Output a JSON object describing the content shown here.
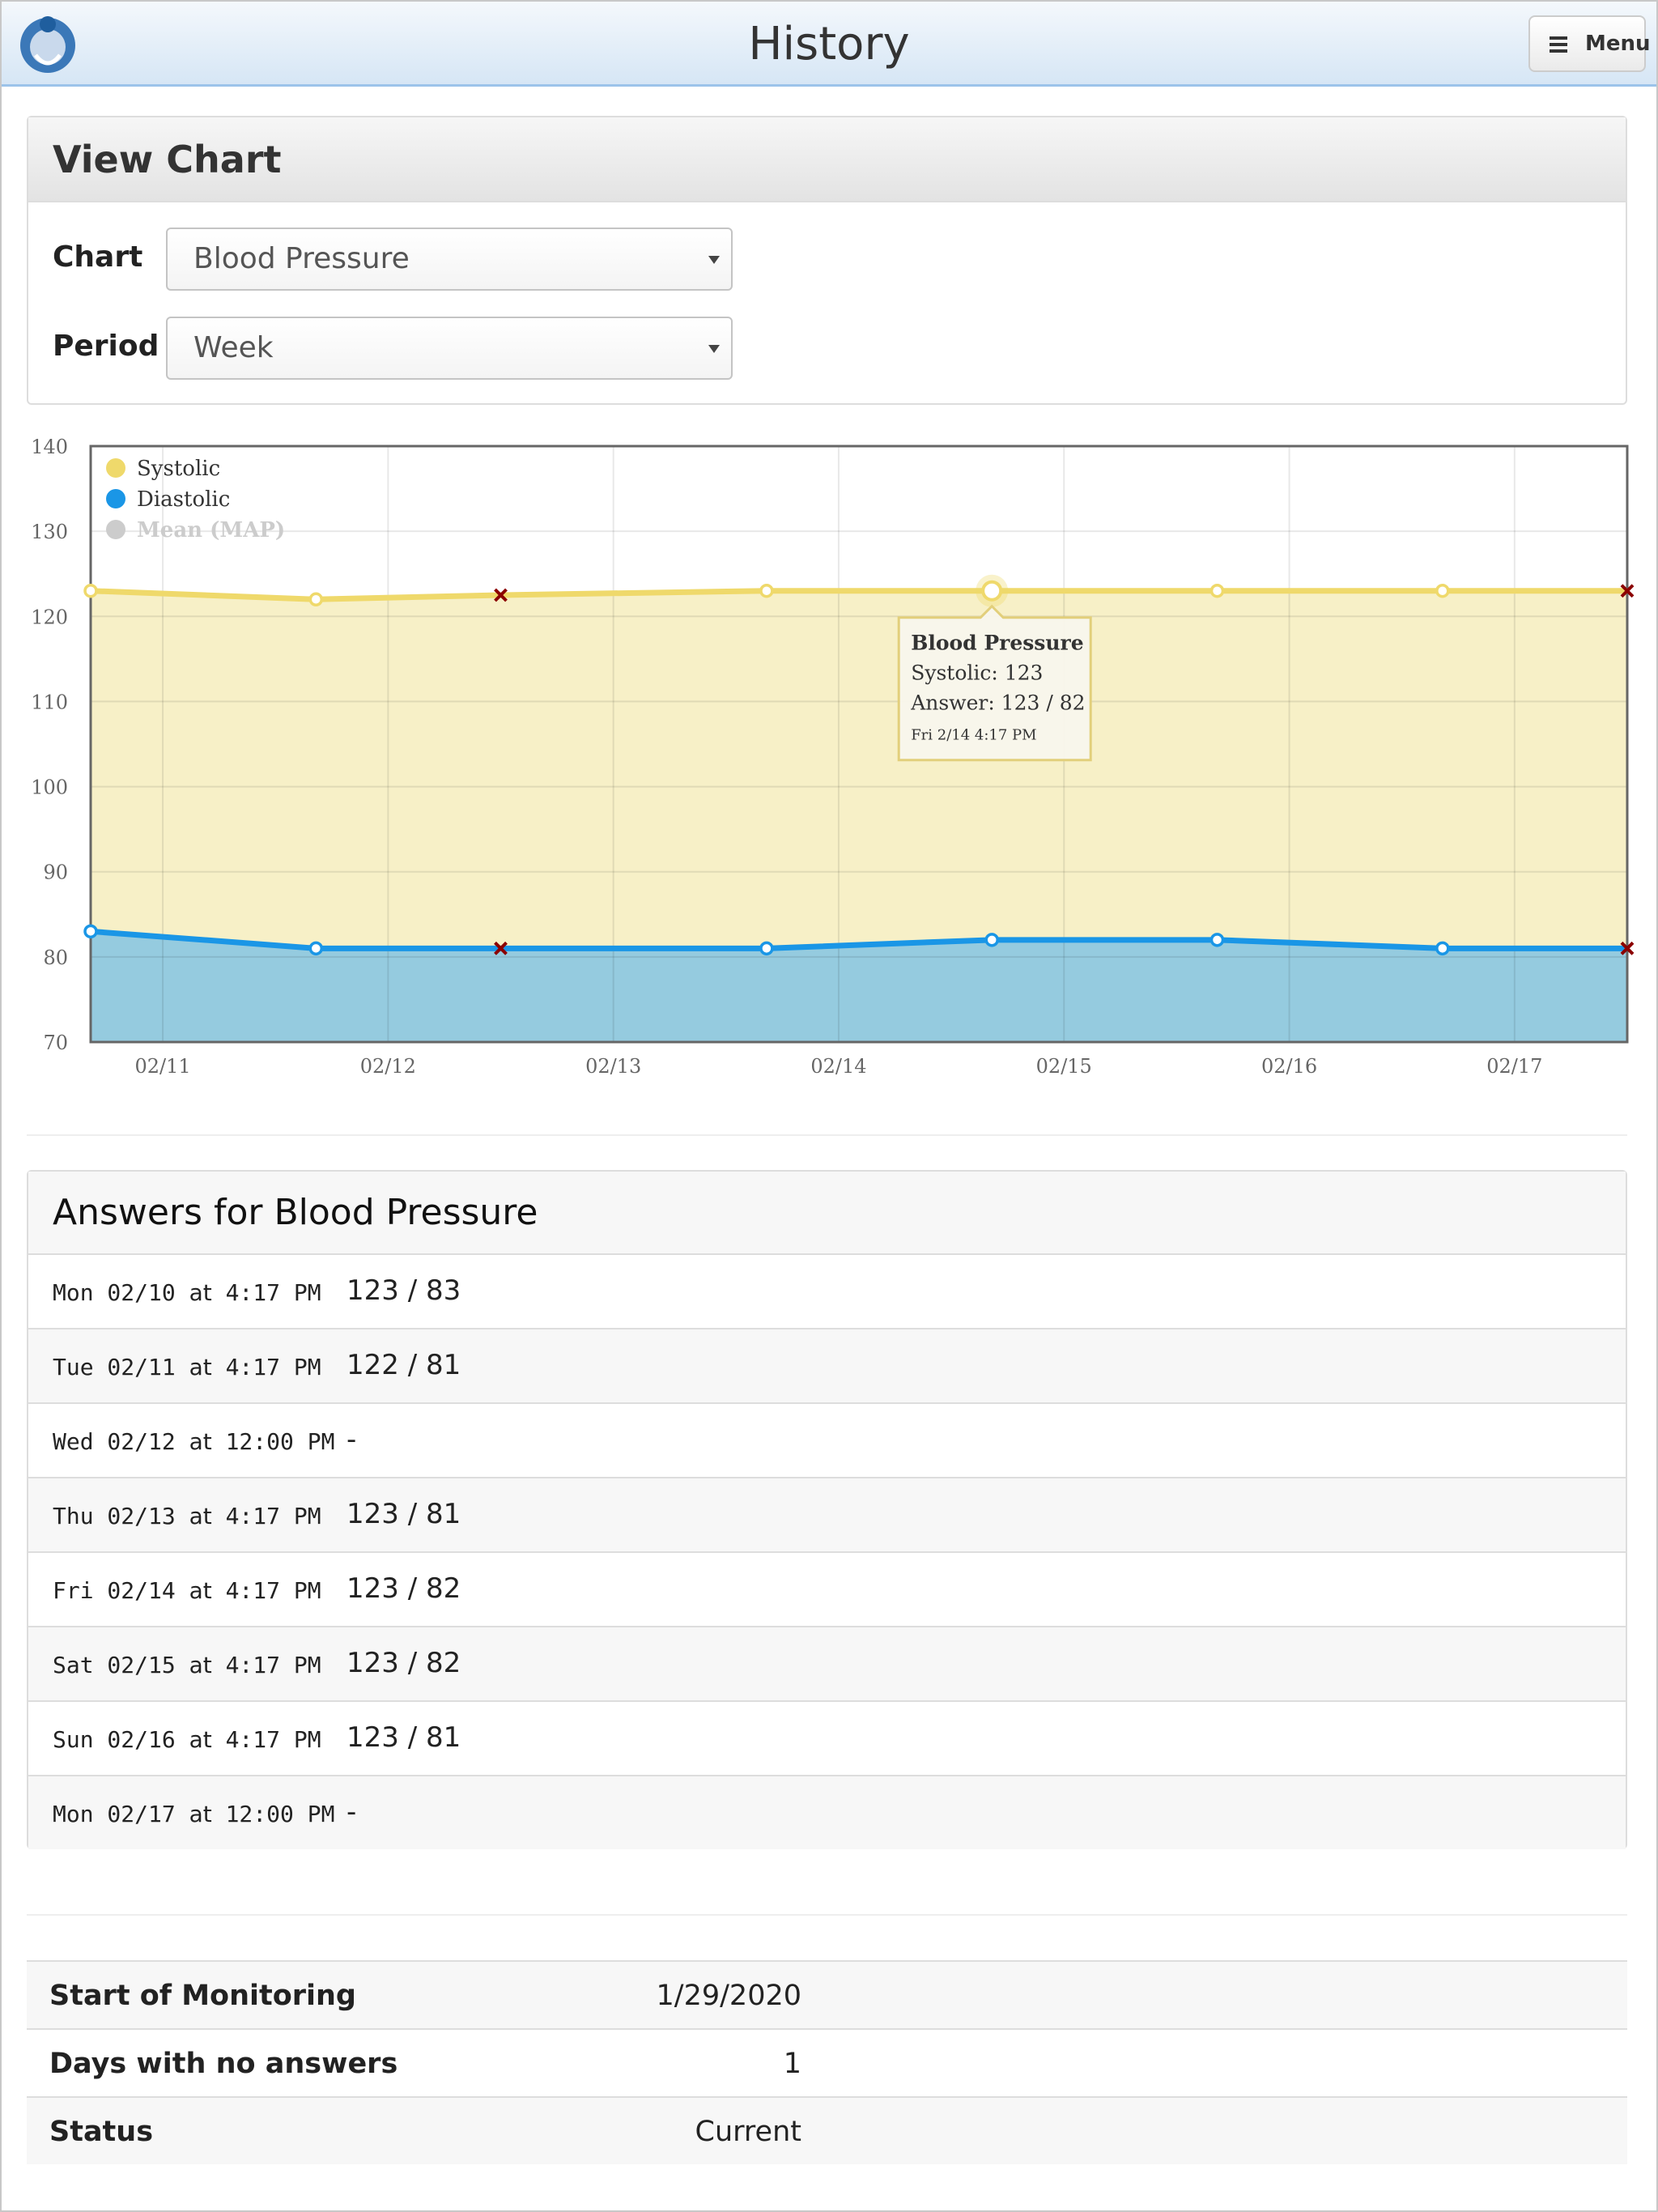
{
  "header": {
    "title": "History",
    "menu": "Menu"
  },
  "view_chart": {
    "title": "View Chart",
    "fields": [
      {
        "label": "Chart",
        "value": "Blood Pressure"
      },
      {
        "label": "Period",
        "value": "Week"
      }
    ]
  },
  "chart_data": {
    "type": "area",
    "x": [
      10.68,
      11.68,
      12.5,
      13.68,
      14.68,
      15.68,
      16.68,
      17.5
    ],
    "xlim": [
      10.68,
      17.5
    ],
    "xticks": [
      {
        "value": 11,
        "label": "02/11"
      },
      {
        "value": 12,
        "label": "02/12"
      },
      {
        "value": 13,
        "label": "02/13"
      },
      {
        "value": 14,
        "label": "02/14"
      },
      {
        "value": 15,
        "label": "02/15"
      },
      {
        "value": 16,
        "label": "02/16"
      },
      {
        "value": 17,
        "label": "02/17"
      }
    ],
    "ylim": [
      70,
      140
    ],
    "yticks": [
      70,
      80,
      90,
      100,
      110,
      120,
      130,
      140
    ],
    "grid": true,
    "missing_marker_color": "#8b0000",
    "series": [
      {
        "name": "Systolic",
        "color": "#efd96b",
        "fill": "#f7f0c7",
        "values": [
          123,
          122,
          122.5,
          123,
          123,
          123,
          123,
          123
        ],
        "markers": [
          "circle",
          "circle",
          "x",
          "circle",
          "circle",
          "circle",
          "circle",
          "x"
        ]
      },
      {
        "name": "Diastolic",
        "color": "#1a96e6",
        "fill": "#95cbdf",
        "values": [
          83,
          81,
          81,
          81,
          82,
          82,
          81,
          81
        ],
        "markers": [
          "circle",
          "circle",
          "x",
          "circle",
          "circle",
          "circle",
          "circle",
          "x"
        ]
      },
      {
        "name": "Mean (MAP)",
        "color": "#cccccc",
        "hidden": true,
        "values": [
          null,
          null,
          null,
          null,
          null,
          null,
          null,
          null
        ]
      }
    ],
    "tooltip": [
      "Blood Pressure",
      "Systolic: 123",
      "Answer: 123 / 82",
      "Fri 2/14 4:17 PM"
    ]
  },
  "answers": {
    "title": "Answers for Blood Pressure",
    "rows": [
      {
        "day": "Mon 02/10",
        "at": "at",
        "time": "4:17 PM",
        "answer": "123 / 83"
      },
      {
        "day": "Tue 02/11",
        "at": "at",
        "time": "4:17 PM",
        "answer": "122 / 81"
      },
      {
        "day": "Wed 02/12",
        "at": "at",
        "time": "12:00 PM",
        "answer": "-"
      },
      {
        "day": "Thu 02/13",
        "at": "at",
        "time": "4:17 PM",
        "answer": "123 / 81"
      },
      {
        "day": "Fri 02/14",
        "at": "at",
        "time": "4:17 PM",
        "answer": "123 / 82"
      },
      {
        "day": "Sat 02/15",
        "at": "at",
        "time": "4:17 PM",
        "answer": "123 / 82"
      },
      {
        "day": "Sun 02/16",
        "at": "at",
        "time": "4:17 PM",
        "answer": "123 / 81"
      },
      {
        "day": "Mon 02/17",
        "at": "at",
        "time": "12:00 PM",
        "answer": "-"
      }
    ]
  },
  "summary": {
    "rows": [
      [
        "Start of Monitoring",
        "1/29/2020"
      ],
      [
        "Days with no answers",
        1
      ],
      [
        "Status",
        "Current"
      ]
    ]
  }
}
